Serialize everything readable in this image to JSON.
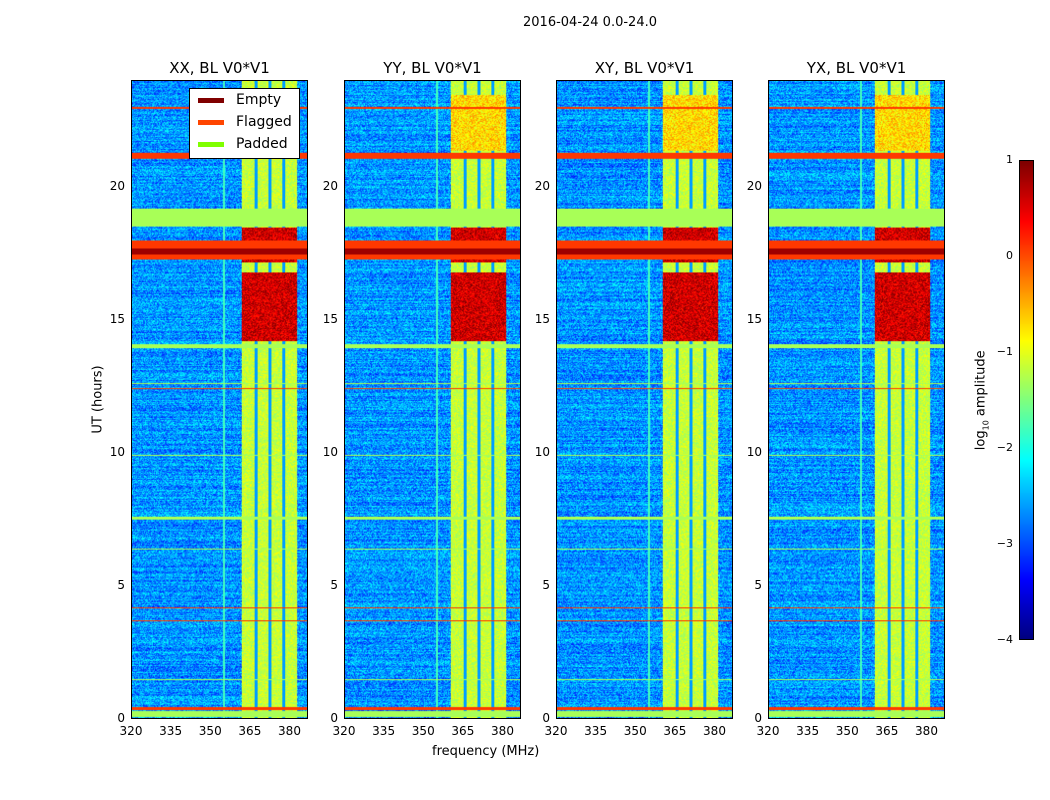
{
  "chart_data": {
    "type": "heatmap",
    "title": "2016-04-24 0.0-24.0",
    "xlabel": "frequency (MHz)",
    "ylabel": "UT (hours)",
    "xlim": [
      320,
      387
    ],
    "ylim": [
      0,
      24
    ],
    "xticks": [
      "320",
      "335",
      "350",
      "365",
      "380"
    ],
    "xtick_values": [
      320,
      335,
      350,
      365,
      380
    ],
    "yticks": [
      "0",
      "5",
      "10",
      "15",
      "20"
    ],
    "ytick_values": [
      0,
      5,
      10,
      15,
      20
    ],
    "panels": [
      {
        "title": "XX, BL V0*V1"
      },
      {
        "title": "YY, BL V0*V1"
      },
      {
        "title": "XY, BL V0*V1"
      },
      {
        "title": "YX, BL V0*V1"
      }
    ],
    "legend": {
      "position": "top-right of first panel",
      "entries": [
        {
          "label": "Empty",
          "color": "#800000"
        },
        {
          "label": "Flagged",
          "color": "#ff4500"
        },
        {
          "label": "Padded",
          "color": "#7fff00"
        }
      ]
    },
    "colorbar": {
      "label": "log10 amplitude",
      "label_main": "log",
      "label_sub": "10",
      "label_rest": " amplitude",
      "range": [
        -4,
        1
      ],
      "ticks": [
        "−4",
        "−3",
        "−2",
        "−1",
        "0",
        "1"
      ],
      "tick_values": [
        -4,
        -3,
        -2,
        -1,
        0,
        1
      ],
      "colormap": "jet"
    },
    "bright_band_mhz": [
      362,
      383
    ],
    "band_gaps_mhz": [
      367.3,
      372.6,
      377.8
    ],
    "padded_hours": [
      [
        18.55,
        19.2
      ],
      [
        0.05,
        0.3
      ],
      [
        13.95,
        14.1
      ],
      [
        12.6,
        12.65
      ],
      [
        7.5,
        7.6
      ],
      [
        1.45,
        1.5
      ],
      [
        9.9,
        9.95
      ],
      [
        6.35,
        6.4
      ]
    ],
    "flagged_hours": [
      [
        17.3,
        18.0
      ],
      [
        0.33,
        0.45
      ],
      [
        21.1,
        21.3
      ],
      [
        22.95,
        23.05
      ],
      [
        12.4,
        12.45
      ],
      [
        4.15,
        4.2
      ],
      [
        3.65,
        3.7
      ]
    ],
    "intense_hours": [
      [
        14.2,
        16.8
      ],
      [
        17.2,
        18.5
      ],
      [
        21.4,
        23.5
      ]
    ]
  }
}
